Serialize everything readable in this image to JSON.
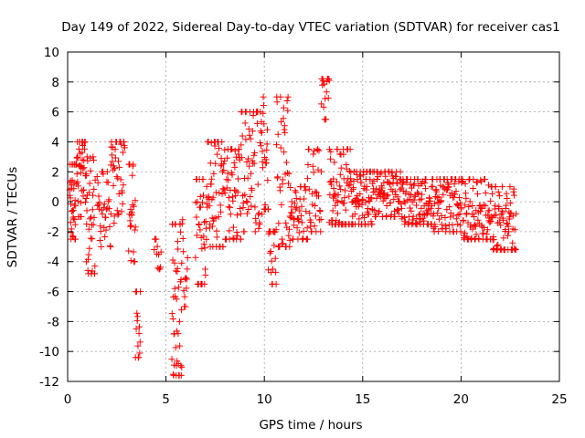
{
  "chart_data": {
    "type": "scatter",
    "title": "Day 149 of 2022, Sidereal Day-to-day VTEC variation (SDTVAR) for receiver cas1",
    "xlabel": "GPS time / hours",
    "ylabel": "SDTVAR / TECUs",
    "xlim": [
      0,
      25
    ],
    "ylim": [
      -12,
      10
    ],
    "xticks": [
      0,
      5,
      10,
      15,
      20,
      25
    ],
    "yticks": [
      -12,
      -10,
      -8,
      -6,
      -4,
      -2,
      0,
      2,
      4,
      6,
      8,
      10
    ],
    "grid": true,
    "marker": "+",
    "color": "#ff0000",
    "series_name": "SDTVAR",
    "segments": [
      {
        "t0": 0.1,
        "t1": 0.45,
        "lo": -2.5,
        "hi": 2.5,
        "mid": 0.5,
        "n": 40
      },
      {
        "t0": 0.45,
        "t1": 0.95,
        "lo": -1.0,
        "hi": 4.0,
        "mid": 2.0,
        "n": 45
      },
      {
        "t0": 0.95,
        "t1": 1.4,
        "lo": -4.8,
        "hi": 3.0,
        "mid": -1.5,
        "n": 35
      },
      {
        "t0": 1.5,
        "t1": 2.2,
        "lo": -3.0,
        "hi": 2.0,
        "mid": -0.5,
        "n": 35
      },
      {
        "t0": 2.2,
        "t1": 2.9,
        "lo": -1.5,
        "hi": 4.0,
        "mid": 2.5,
        "n": 40
      },
      {
        "t0": 3.1,
        "t1": 3.45,
        "lo": -4.0,
        "hi": 2.5,
        "mid": -1.0,
        "n": 25
      },
      {
        "t0": 3.45,
        "t1": 3.7,
        "lo": -10.4,
        "hi": -6.0,
        "mid": -9.0,
        "n": 15
      },
      {
        "t0": 4.4,
        "t1": 4.75,
        "lo": -4.5,
        "hi": -2.5,
        "mid": -3.5,
        "n": 12
      },
      {
        "t0": 5.3,
        "t1": 5.8,
        "lo": -11.6,
        "hi": -1.5,
        "mid": -7.0,
        "n": 45
      },
      {
        "t0": 5.8,
        "t1": 6.1,
        "lo": -7.0,
        "hi": -1.2,
        "mid": -4.5,
        "n": 15
      },
      {
        "t0": 6.5,
        "t1": 7.1,
        "lo": -5.5,
        "hi": 1.5,
        "mid": -2.5,
        "n": 40
      },
      {
        "t0": 7.1,
        "t1": 7.9,
        "lo": -3.0,
        "hi": 4.0,
        "mid": 0.5,
        "n": 55
      },
      {
        "t0": 7.9,
        "t1": 8.8,
        "lo": -2.5,
        "hi": 3.5,
        "mid": 0.5,
        "n": 55
      },
      {
        "t0": 8.8,
        "t1": 9.9,
        "lo": -2.0,
        "hi": 6.0,
        "mid": 2.5,
        "n": 65
      },
      {
        "t0": 9.9,
        "t1": 10.2,
        "lo": -0.5,
        "hi": 7.0,
        "mid": 2.0,
        "n": 20
      },
      {
        "t0": 10.2,
        "t1": 10.6,
        "lo": -5.5,
        "hi": -2.0,
        "mid": -3.5,
        "n": 20
      },
      {
        "t0": 10.6,
        "t1": 11.3,
        "lo": -3.0,
        "hi": 7.0,
        "mid": 1.5,
        "n": 45
      },
      {
        "t0": 11.3,
        "t1": 12.2,
        "lo": -2.5,
        "hi": 1.0,
        "mid": -1.0,
        "n": 45
      },
      {
        "t0": 12.2,
        "t1": 12.9,
        "lo": -2.0,
        "hi": 3.5,
        "mid": 0.5,
        "n": 35
      },
      {
        "t0": 12.9,
        "t1": 13.3,
        "lo": 5.5,
        "hi": 8.2,
        "mid": 7.0,
        "n": 18
      },
      {
        "t0": 13.3,
        "t1": 14.5,
        "lo": -1.5,
        "hi": 3.5,
        "mid": 0.5,
        "n": 80
      },
      {
        "t0": 14.5,
        "t1": 15.5,
        "lo": -1.5,
        "hi": 2.0,
        "mid": 0.5,
        "n": 70
      },
      {
        "t0": 15.5,
        "t1": 17.0,
        "lo": -1.0,
        "hi": 2.0,
        "mid": 0.5,
        "n": 90
      },
      {
        "t0": 17.0,
        "t1": 18.5,
        "lo": -1.5,
        "hi": 1.5,
        "mid": 0.0,
        "n": 90
      },
      {
        "t0": 18.5,
        "t1": 20.0,
        "lo": -2.0,
        "hi": 1.5,
        "mid": 0.0,
        "n": 90
      },
      {
        "t0": 20.0,
        "t1": 21.5,
        "lo": -2.5,
        "hi": 1.5,
        "mid": -1.0,
        "n": 90
      },
      {
        "t0": 21.5,
        "t1": 22.8,
        "lo": -3.2,
        "hi": 1.0,
        "mid": -1.5,
        "n": 80
      }
    ]
  }
}
